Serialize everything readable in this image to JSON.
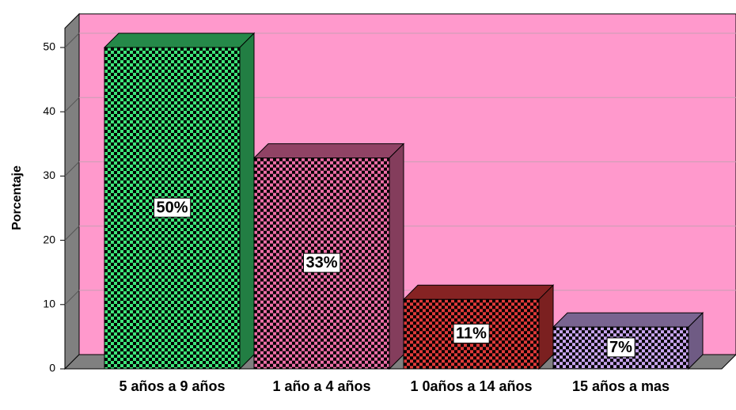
{
  "chart_data": {
    "type": "bar3d",
    "y_label": "Porcentaje",
    "categories": [
      "5 años a 9 años",
      "1 año a 4 años",
      "1 0años a 14 años",
      "15 años a mas"
    ],
    "values": [
      50,
      32.8,
      10.8,
      6.5
    ],
    "value_labels": [
      "50%",
      "33%",
      "11%",
      "7%"
    ],
    "colors": [
      "#3ee57a",
      "#f06fa8",
      "#e03a3a",
      "#c9a6f0"
    ],
    "ylim": [
      0,
      53
    ],
    "yticks": [
      0,
      10,
      20,
      30,
      40,
      50
    ],
    "grid": true
  }
}
